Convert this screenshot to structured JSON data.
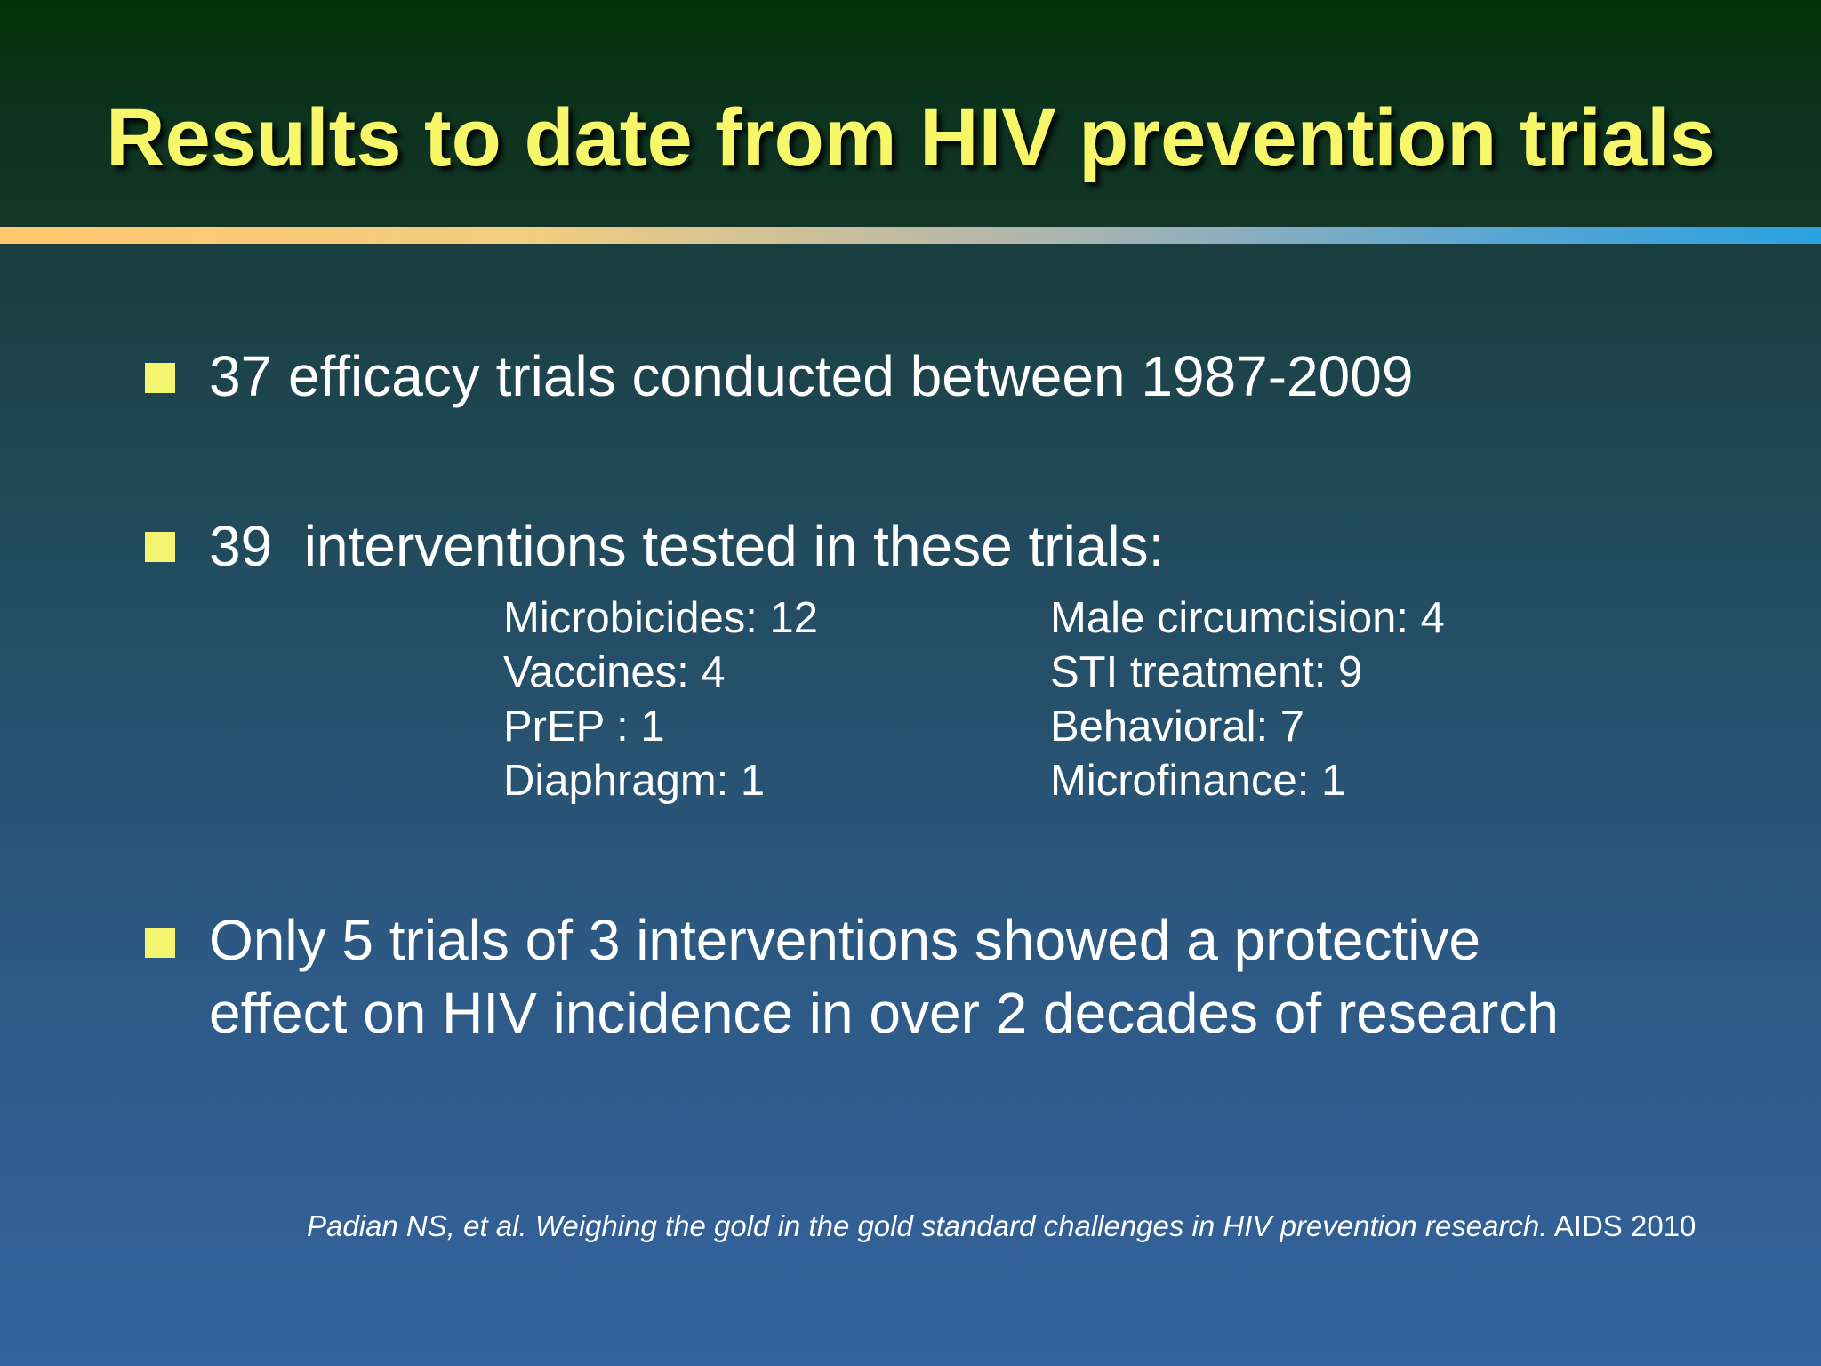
{
  "slide": {
    "title": "Results to date from HIV prevention trials",
    "bullets": [
      {
        "text": "37 efficacy trials conducted between 1987-2009"
      },
      {
        "text": "39  interventions tested in these trials:"
      },
      {
        "line1": "Only 5 trials of 3 interventions showed a protective",
        "line2": "effect on HIV incidence in over 2 decades of research"
      }
    ],
    "interventions_left": [
      "Microbicides: 12",
      "Vaccines: 4",
      "PrEP : 1",
      "Diaphragm: 1"
    ],
    "interventions_right": [
      "Male circumcision: 4",
      "STI treatment: 9",
      "Behavioral: 7",
      "Microfinance: 1"
    ],
    "citation": {
      "italic": "Padian NS, et al. Weighing the gold in the gold standard challenges in HIV prevention research.",
      "journal": "AIDS 2010"
    }
  }
}
